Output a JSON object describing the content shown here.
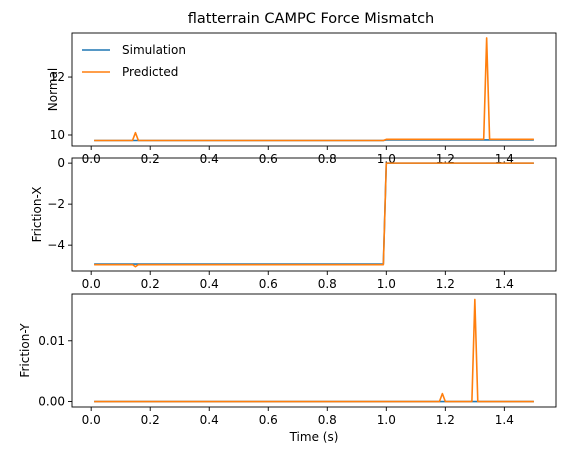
{
  "chart_data": {
    "type": "line",
    "title": "flatterrain CAMPC Force Mismatch",
    "xlabel": "Time (s)",
    "xlim": [
      -0.065,
      1.575
    ],
    "x_ticks": [
      0.0,
      0.2,
      0.4,
      0.6,
      0.8,
      1.0,
      1.2,
      1.4
    ],
    "x_tick_labels": [
      "0.0",
      "0.2",
      "0.4",
      "0.6",
      "0.8",
      "1.0",
      "1.2",
      "1.4"
    ],
    "legend": {
      "location": "upper-left",
      "entries": [
        {
          "name": "Simulation",
          "color": "#1f77b4"
        },
        {
          "name": "Predicted",
          "color": "#ff7f0e"
        }
      ]
    },
    "panels": [
      {
        "ylabel": "Normal",
        "ylim": [
          9.62,
          13.52
        ],
        "y_ticks": [
          10,
          12
        ],
        "y_tick_labels": [
          "10",
          "12"
        ],
        "show_xlabel": false,
        "series": [
          {
            "name": "Simulation",
            "color": "#1f77b4",
            "x": [
              0.01,
              0.99,
              1.0,
              1.5
            ],
            "y": [
              9.81,
              9.81,
              9.83,
              9.83
            ]
          },
          {
            "name": "Predicted",
            "color": "#ff7f0e",
            "x": [
              0.01,
              0.14,
              0.15,
              0.16,
              0.99,
              1.0,
              1.33,
              1.34,
              1.35,
              1.5
            ],
            "y": [
              9.81,
              9.81,
              10.08,
              9.81,
              9.81,
              9.85,
              9.85,
              13.35,
              9.85,
              9.85
            ]
          }
        ]
      },
      {
        "ylabel": "Friction-X",
        "ylim": [
          -5.26,
          0.25
        ],
        "y_ticks": [
          0,
          -2,
          -4
        ],
        "y_tick_labels": [
          "0",
          "−2",
          "−4"
        ],
        "show_xlabel": false,
        "series": [
          {
            "name": "Simulation",
            "color": "#1f77b4",
            "x": [
              0.01,
              0.99,
              1.0,
              1.5
            ],
            "y": [
              -4.92,
              -4.92,
              0.0,
              0.0
            ]
          },
          {
            "name": "Predicted",
            "color": "#ff7f0e",
            "x": [
              0.01,
              0.14,
              0.15,
              0.16,
              0.98,
              0.99,
              1.0,
              1.5
            ],
            "y": [
              -4.95,
              -4.95,
              -5.05,
              -4.95,
              -4.95,
              -4.95,
              0.0,
              0.0
            ]
          }
        ]
      },
      {
        "ylabel": "Friction-Y",
        "ylim": [
          -0.0009,
          0.0177
        ],
        "y_ticks": [
          0.0,
          0.01
        ],
        "y_tick_labels": [
          "0.00",
          "0.01"
        ],
        "show_xlabel": true,
        "series": [
          {
            "name": "Simulation",
            "color": "#1f77b4",
            "x": [
              0.01,
              1.5
            ],
            "y": [
              0.0,
              0.0
            ]
          },
          {
            "name": "Predicted",
            "color": "#ff7f0e",
            "x": [
              0.01,
              1.18,
              1.19,
              1.2,
              1.29,
              1.3,
              1.31,
              1.5
            ],
            "y": [
              0.0,
              0.0,
              0.0013,
              0.0,
              0.0,
              0.0168,
              0.0,
              0.0
            ]
          }
        ]
      }
    ]
  }
}
